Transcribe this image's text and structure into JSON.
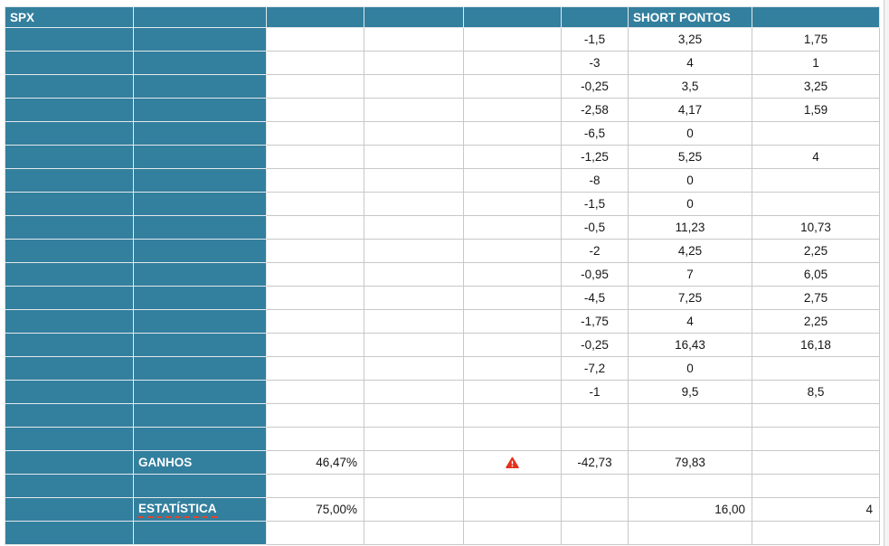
{
  "meta": {
    "teal_color": "#337F9E",
    "grid_line_color": "#c8c8c8",
    "warning_color": "#E3311D",
    "underline_color": "#E0452B"
  },
  "table": {
    "columns": [
      "A",
      "B",
      "C",
      "D",
      "E",
      "F",
      "G",
      "H"
    ],
    "rows": [
      [
        {
          "t": "SPX",
          "k": "label",
          "n": "spx-title-cell"
        },
        {
          "k": "teal"
        },
        {
          "k": "teal"
        },
        {
          "k": "teal"
        },
        {
          "k": "teal"
        },
        {
          "k": "teal"
        },
        {
          "t": "SHORT PONTOS",
          "k": "label",
          "n": "short-pontos-header-cell"
        },
        {
          "k": "teal"
        }
      ],
      [
        {
          "k": "teal"
        },
        {
          "k": "teal"
        },
        {
          "k": "blank"
        },
        {
          "k": "blank"
        },
        {
          "k": "blank"
        },
        {
          "t": "-1,5",
          "k": "num-c"
        },
        {
          "t": "3,25",
          "k": "num-c"
        },
        {
          "t": "1,75",
          "k": "num-c"
        }
      ],
      [
        {
          "k": "teal"
        },
        {
          "k": "teal"
        },
        {
          "k": "blank"
        },
        {
          "k": "blank"
        },
        {
          "k": "blank"
        },
        {
          "t": "-3",
          "k": "num-c"
        },
        {
          "t": "4",
          "k": "num-c"
        },
        {
          "t": "1",
          "k": "num-c"
        }
      ],
      [
        {
          "k": "teal"
        },
        {
          "k": "teal"
        },
        {
          "k": "blank"
        },
        {
          "k": "blank"
        },
        {
          "k": "blank"
        },
        {
          "t": "-0,25",
          "k": "num-c"
        },
        {
          "t": "3,5",
          "k": "num-c"
        },
        {
          "t": "3,25",
          "k": "num-c"
        }
      ],
      [
        {
          "k": "teal"
        },
        {
          "k": "teal"
        },
        {
          "k": "blank"
        },
        {
          "k": "blank"
        },
        {
          "k": "blank"
        },
        {
          "t": "-2,58",
          "k": "num-c"
        },
        {
          "t": "4,17",
          "k": "num-c"
        },
        {
          "t": "1,59",
          "k": "num-c"
        }
      ],
      [
        {
          "k": "teal"
        },
        {
          "k": "teal"
        },
        {
          "k": "blank"
        },
        {
          "k": "blank"
        },
        {
          "k": "blank"
        },
        {
          "t": "-6,5",
          "k": "num-c"
        },
        {
          "t": "0",
          "k": "num-c"
        },
        {
          "k": "blank"
        }
      ],
      [
        {
          "k": "teal"
        },
        {
          "k": "teal"
        },
        {
          "k": "blank"
        },
        {
          "k": "blank"
        },
        {
          "k": "blank"
        },
        {
          "t": "-1,25",
          "k": "num-c"
        },
        {
          "t": "5,25",
          "k": "num-c"
        },
        {
          "t": "4",
          "k": "num-c"
        }
      ],
      [
        {
          "k": "teal"
        },
        {
          "k": "teal"
        },
        {
          "k": "blank"
        },
        {
          "k": "blank"
        },
        {
          "k": "blank"
        },
        {
          "t": "-8",
          "k": "num-c"
        },
        {
          "t": "0",
          "k": "num-c"
        },
        {
          "k": "blank"
        }
      ],
      [
        {
          "k": "teal"
        },
        {
          "k": "teal"
        },
        {
          "k": "blank"
        },
        {
          "k": "blank"
        },
        {
          "k": "blank"
        },
        {
          "t": "-1,5",
          "k": "num-c"
        },
        {
          "t": "0",
          "k": "num-c"
        },
        {
          "k": "blank"
        }
      ],
      [
        {
          "k": "teal"
        },
        {
          "k": "teal"
        },
        {
          "k": "blank"
        },
        {
          "k": "blank"
        },
        {
          "k": "blank"
        },
        {
          "t": "-0,5",
          "k": "num-c"
        },
        {
          "t": "11,23",
          "k": "num-c"
        },
        {
          "t": "10,73",
          "k": "num-c"
        }
      ],
      [
        {
          "k": "teal"
        },
        {
          "k": "teal"
        },
        {
          "k": "blank"
        },
        {
          "k": "blank"
        },
        {
          "k": "blank"
        },
        {
          "t": "-2",
          "k": "num-c"
        },
        {
          "t": "4,25",
          "k": "num-c"
        },
        {
          "t": "2,25",
          "k": "num-c"
        }
      ],
      [
        {
          "k": "teal"
        },
        {
          "k": "teal"
        },
        {
          "k": "blank"
        },
        {
          "k": "blank"
        },
        {
          "k": "blank"
        },
        {
          "t": "-0,95",
          "k": "num-c"
        },
        {
          "t": "7",
          "k": "num-c"
        },
        {
          "t": "6,05",
          "k": "num-c"
        }
      ],
      [
        {
          "k": "teal"
        },
        {
          "k": "teal"
        },
        {
          "k": "blank"
        },
        {
          "k": "blank"
        },
        {
          "k": "blank"
        },
        {
          "t": "-4,5",
          "k": "num-c"
        },
        {
          "t": "7,25",
          "k": "num-c"
        },
        {
          "t": "2,75",
          "k": "num-c"
        }
      ],
      [
        {
          "k": "teal"
        },
        {
          "k": "teal"
        },
        {
          "k": "blank"
        },
        {
          "k": "blank"
        },
        {
          "k": "blank"
        },
        {
          "t": "-1,75",
          "k": "num-c"
        },
        {
          "t": "4",
          "k": "num-c"
        },
        {
          "t": "2,25",
          "k": "num-c"
        }
      ],
      [
        {
          "k": "teal"
        },
        {
          "k": "teal"
        },
        {
          "k": "blank"
        },
        {
          "k": "blank"
        },
        {
          "k": "blank"
        },
        {
          "t": "-0,25",
          "k": "num-c"
        },
        {
          "t": "16,43",
          "k": "num-c"
        },
        {
          "t": "16,18",
          "k": "num-c"
        }
      ],
      [
        {
          "k": "teal"
        },
        {
          "k": "teal"
        },
        {
          "k": "blank"
        },
        {
          "k": "blank"
        },
        {
          "k": "blank"
        },
        {
          "t": "-7,2",
          "k": "num-c"
        },
        {
          "t": "0",
          "k": "num-c"
        },
        {
          "k": "blank"
        }
      ],
      [
        {
          "k": "teal"
        },
        {
          "k": "teal"
        },
        {
          "k": "blank"
        },
        {
          "k": "blank"
        },
        {
          "k": "blank"
        },
        {
          "t": "-1",
          "k": "num-c"
        },
        {
          "t": "9,5",
          "k": "num-c"
        },
        {
          "t": "8,5",
          "k": "num-c"
        }
      ],
      [
        {
          "k": "teal"
        },
        {
          "k": "teal"
        },
        {
          "k": "blank"
        },
        {
          "k": "blank"
        },
        {
          "k": "blank"
        },
        {
          "k": "blank"
        },
        {
          "k": "blank"
        },
        {
          "k": "blank"
        }
      ],
      [
        {
          "k": "teal"
        },
        {
          "k": "teal"
        },
        {
          "k": "blank"
        },
        {
          "k": "blank"
        },
        {
          "k": "blank"
        },
        {
          "k": "blank"
        },
        {
          "k": "blank"
        },
        {
          "k": "blank"
        }
      ],
      [
        {
          "k": "teal"
        },
        {
          "t": "GANHOS",
          "k": "label",
          "n": "ganhos-label-cell"
        },
        {
          "t": "46,47%",
          "k": "num-r",
          "n": "ganhos-percent-cell"
        },
        {
          "k": "blank"
        },
        {
          "k": "warn",
          "icon": "warning-icon",
          "n": "warning-cell"
        },
        {
          "t": "-42,73",
          "k": "num-c",
          "n": "ganhos-loss-cell"
        },
        {
          "t": "79,83",
          "k": "num-c",
          "n": "ganhos-gain-cell"
        },
        {
          "k": "blank"
        }
      ],
      [
        {
          "k": "teal"
        },
        {
          "k": "teal"
        },
        {
          "k": "blank"
        },
        {
          "k": "blank"
        },
        {
          "k": "blank"
        },
        {
          "k": "blank"
        },
        {
          "k": "blank"
        },
        {
          "k": "blank"
        }
      ],
      [
        {
          "k": "teal"
        },
        {
          "t": "ESTATÍSTICA",
          "k": "est-label",
          "n": "estatistica-label-cell"
        },
        {
          "t": "75,00%",
          "k": "num-r",
          "n": "estatistica-percent-cell"
        },
        {
          "k": "blank"
        },
        {
          "k": "blank"
        },
        {
          "k": "blank"
        },
        {
          "t": "16,00",
          "k": "num-r",
          "n": "estatistica-count-cell"
        },
        {
          "t": "4",
          "k": "num-r",
          "n": "estatistica-value-cell"
        }
      ],
      [
        {
          "k": "teal"
        },
        {
          "k": "teal"
        },
        {
          "k": "blank"
        },
        {
          "k": "blank"
        },
        {
          "k": "blank"
        },
        {
          "k": "blank"
        },
        {
          "k": "blank"
        },
        {
          "k": "blank"
        }
      ]
    ]
  }
}
